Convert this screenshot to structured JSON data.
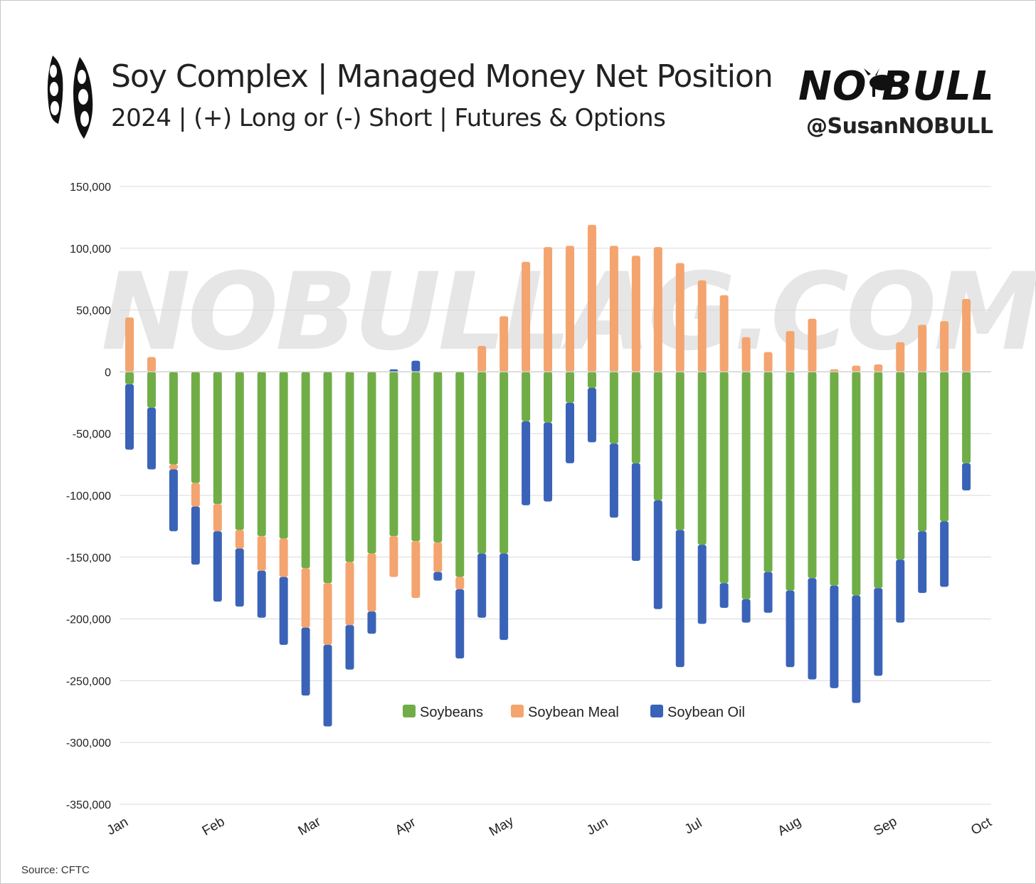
{
  "header": {
    "title": "Soy Complex | Managed Money Net Position",
    "subtitle": "2024 | (+) Long or (-) Short | Futures & Options",
    "brand": "NO BULL",
    "handle": "@SusanNOBULL"
  },
  "watermark": "NOBULLAG.COM",
  "source": "Source: CFTC",
  "colors": {
    "soybeans": "#70ad47",
    "meal": "#f4a46e",
    "oil": "#3a63b8"
  },
  "chart_data": {
    "type": "bar",
    "stacked": true,
    "title": "",
    "ylim": [
      -350000,
      150000
    ],
    "yticks": [
      150000,
      100000,
      50000,
      0,
      -50000,
      -100000,
      -150000,
      -200000,
      -250000,
      -300000,
      -350000
    ],
    "ytick_labels": [
      "150,000",
      "100,000",
      "50,000",
      "0",
      "-50,000",
      "-100,000",
      "-150,000",
      "-200,000",
      "-250,000",
      "-300,000",
      "-350,000"
    ],
    "xtick_labels": [
      "Jan",
      "Feb",
      "Mar",
      "Apr",
      "May",
      "Jun",
      "Jul",
      "Aug",
      "Sep",
      "Oct"
    ],
    "grid": true,
    "legend_position": "bottom-center",
    "series": [
      {
        "name": "Soybeans",
        "color": "#70ad47",
        "values": [
          -10000,
          -29000,
          -75000,
          -90000,
          -107000,
          -128000,
          -133000,
          -135000,
          -159000,
          -171000,
          -154000,
          -147000,
          -133000,
          -137000,
          -138000,
          -166000,
          -147000,
          -147000,
          -40000,
          -41000,
          -25000,
          -13000,
          -58000,
          -74000,
          -104000,
          -128000,
          -140000,
          -171000,
          -184000,
          -162000,
          -177000,
          -167000,
          -173000,
          -181000,
          -175000,
          -152000,
          -129000,
          -121000,
          -74000
        ]
      },
      {
        "name": "Soybean Meal",
        "color": "#f4a46e",
        "values": [
          44000,
          12000,
          -4000,
          -19000,
          -22000,
          -15000,
          -28000,
          -31000,
          -48000,
          -50000,
          -51000,
          -47000,
          -33000,
          -46000,
          -24000,
          -10000,
          21000,
          45000,
          89000,
          101000,
          102000,
          119000,
          102000,
          94000,
          101000,
          88000,
          74000,
          62000,
          28000,
          16000,
          33000,
          43000,
          2000,
          5000,
          6000,
          24000,
          38000,
          41000,
          59000
        ]
      },
      {
        "name": "Soybean Oil",
        "color": "#3a63b8",
        "values": [
          -53000,
          -50000,
          -50000,
          -47000,
          -57000,
          -47000,
          -38000,
          -55000,
          -55000,
          -66000,
          -36000,
          -18000,
          2000,
          9000,
          -7000,
          -56000,
          -52000,
          -70000,
          -68000,
          -64000,
          -49000,
          -44000,
          -60000,
          -79000,
          -88000,
          -111000,
          -64000,
          -20000,
          -19000,
          -33000,
          -62000,
          -82000,
          -83000,
          -87000,
          -71000,
          -51000,
          -50000,
          -53000,
          -22000
        ]
      }
    ]
  }
}
